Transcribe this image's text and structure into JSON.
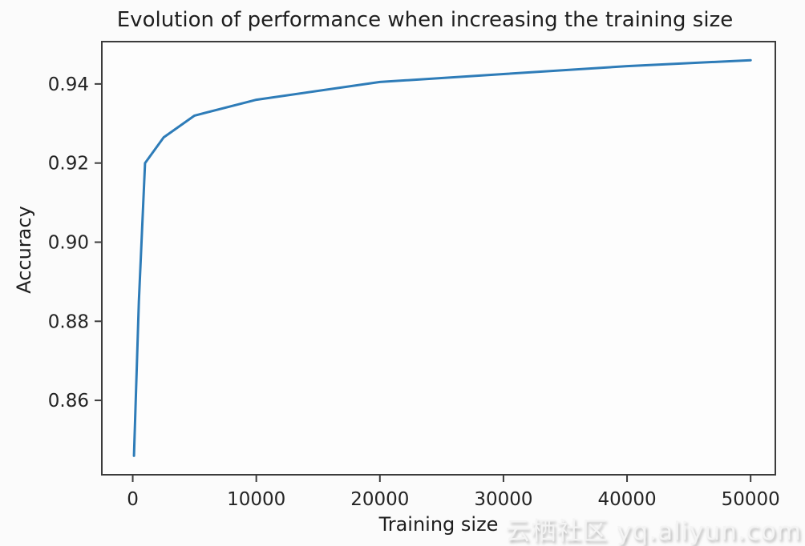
{
  "page": {
    "watermark": "云栖社区 yq.aliyun.com"
  },
  "chart_data": {
    "type": "line",
    "title": "Evolution of performance when increasing the training size",
    "xlabel": "Training size",
    "ylabel": "Accuracy",
    "series": [
      {
        "name": "accuracy",
        "x": [
          100,
          500,
          1000,
          2500,
          5000,
          10000,
          20000,
          30000,
          40000,
          50000
        ],
        "y": [
          0.846,
          0.885,
          0.92,
          0.9265,
          0.932,
          0.936,
          0.9405,
          0.9425,
          0.9445,
          0.946
        ]
      }
    ],
    "xlim": [
      -2500,
      52000
    ],
    "ylim": [
      0.8412,
      0.9507
    ],
    "xticks": [
      0,
      10000,
      20000,
      30000,
      40000,
      50000
    ],
    "yticks": [
      0.86,
      0.88,
      0.9,
      0.92,
      0.94
    ],
    "grid": false,
    "legend": null,
    "line_color": "#2e7cb8",
    "spine_color": "#3c3c3c",
    "plot_bg_color": "#fdfdfd",
    "text_color": "#242424"
  }
}
